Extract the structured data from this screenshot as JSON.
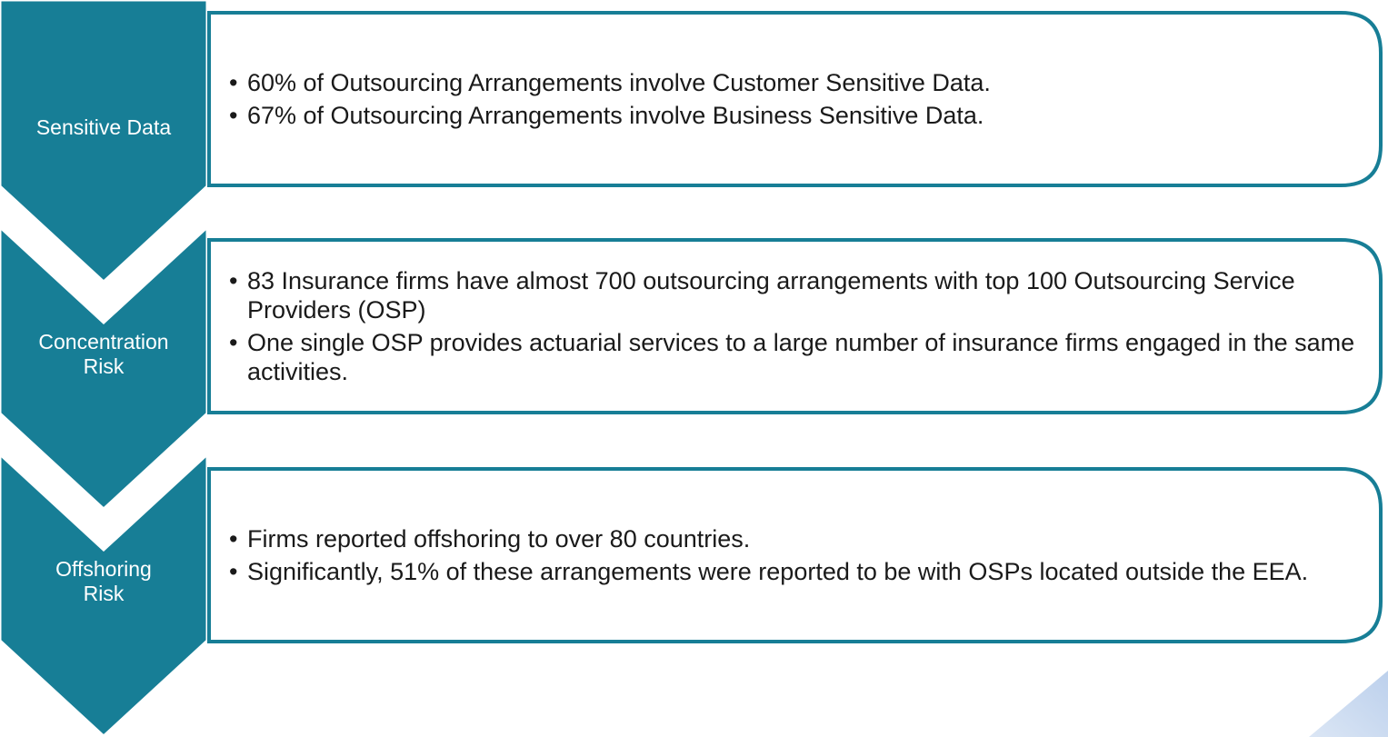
{
  "items": [
    {
      "label": "Sensitive Data",
      "bullets": [
        "60% of Outsourcing Arrangements involve Customer Sensitive Data.",
        "67% of Outsourcing Arrangements involve Business Sensitive Data."
      ]
    },
    {
      "label": "Concentration Risk",
      "bullets": [
        "83 Insurance firms have almost 700 outsourcing arrangements with top 100 Outsourcing Service Providers (OSP)",
        "One single OSP provides actuarial services to a large number of insurance firms engaged in the same activities."
      ]
    },
    {
      "label": "Offshoring Risk",
      "bullets": [
        "Firms reported offshoring to over 80 countries.",
        "Significantly, 51% of these arrangements were reported to be with OSPs located outside the EEA."
      ]
    }
  ]
}
